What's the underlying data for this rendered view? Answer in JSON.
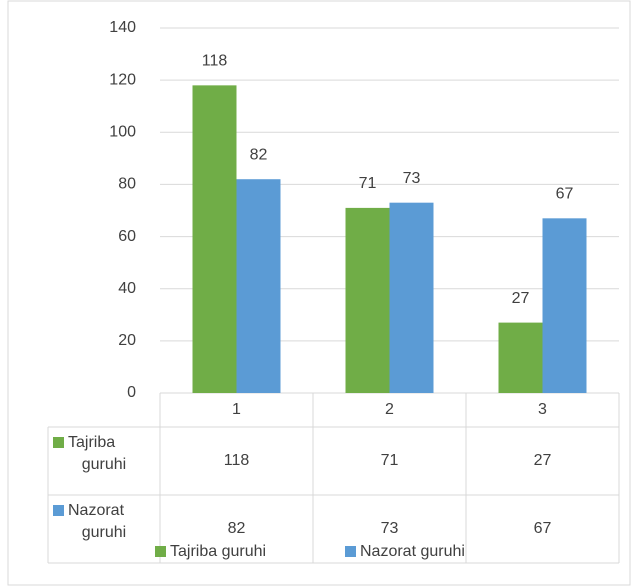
{
  "chart_data": {
    "type": "bar",
    "categories": [
      "1",
      "2",
      "3"
    ],
    "series": [
      {
        "name": "Tajriba guruhi",
        "color": "#70ad47",
        "values": [
          118,
          71,
          27
        ]
      },
      {
        "name": "Nazorat guruhi",
        "color": "#5b9bd5",
        "values": [
          82,
          73,
          67
        ]
      }
    ],
    "ylim": [
      0,
      140
    ],
    "yticks": [
      0,
      20,
      40,
      60,
      80,
      100,
      120,
      140
    ],
    "grid": true,
    "data_table": true,
    "legend": "bottom"
  }
}
